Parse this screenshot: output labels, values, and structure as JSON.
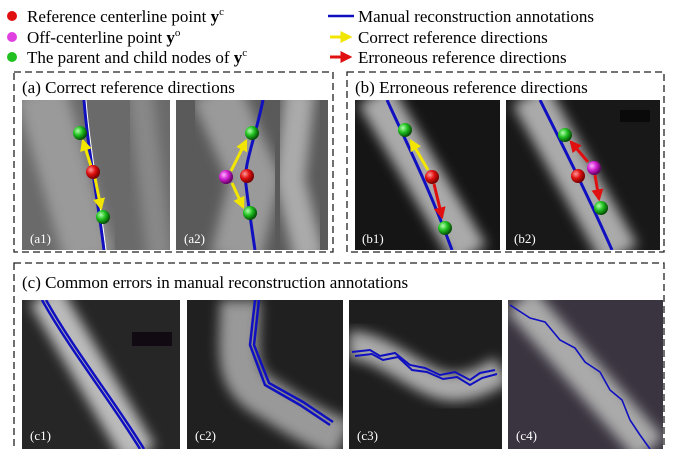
{
  "legend": [
    {
      "text": "Reference centerline point ",
      "symbol": "y",
      "superscript": "c"
    },
    {
      "text": "Off-centerline point ",
      "symbol": "y",
      "superscript": "o"
    },
    {
      "text": "The parent and child nodes of ",
      "symbol": "y",
      "superscript": "c"
    }
  ],
  "legend_right": [
    "Manual reconstruction annotations",
    "Correct reference directions",
    "Erroneous reference directions"
  ],
  "panels": [
    {
      "title": "(a) Correct reference directions",
      "images": [
        "(a1)",
        "(a2)"
      ]
    },
    {
      "title": "(b) Erroneous reference directions",
      "images": [
        "(b1)",
        "(b2)"
      ]
    },
    {
      "title": "(c) Common errors in manual reconstruction annotations",
      "images": [
        "(c1)",
        "(c2)",
        "(c3)",
        "(c4)"
      ]
    }
  ]
}
